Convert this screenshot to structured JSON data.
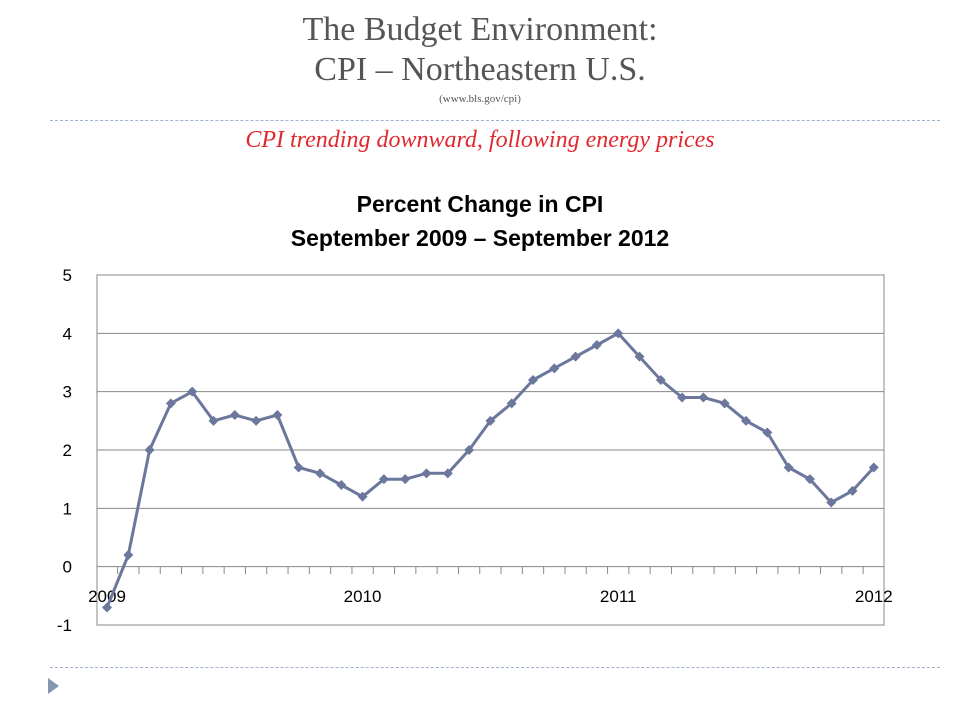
{
  "slide": {
    "title_line1": "The Budget Environment:",
    "title_line2": "CPI – Northeastern U.S.",
    "source": "(www.bls.gov/cpi)",
    "subtitle": "CPI  trending downward, following energy prices"
  },
  "colors": {
    "line": "#6b779c",
    "marker": "#6b779c",
    "grid": "#888888",
    "title": "#555555",
    "subtitle": "#e0282e",
    "bullet": "#8496b0"
  },
  "chart_data": {
    "type": "line",
    "title": [
      "Percent Change in CPI",
      "September 2009 – September 2012"
    ],
    "xlabel": "",
    "ylabel": "",
    "ylim": [
      -1,
      5
    ],
    "yticks": [
      5,
      4,
      3,
      2,
      1,
      0,
      -1
    ],
    "xticks": [
      {
        "label": "2009",
        "index": 0
      },
      {
        "label": "2010",
        "index": 12
      },
      {
        "label": "2011",
        "index": 24
      },
      {
        "label": "2012",
        "index": 36
      }
    ],
    "grid": true,
    "legend": "none",
    "series": [
      {
        "values": [
          -0.7,
          0.2,
          2.0,
          2.8,
          3.0,
          2.5,
          2.6,
          2.5,
          2.6,
          1.7,
          1.6,
          1.4,
          1.2,
          1.5,
          1.5,
          1.6,
          1.6,
          2.0,
          2.5,
          2.8,
          3.2,
          3.4,
          3.6,
          3.8,
          4.0,
          3.6,
          3.2,
          2.9,
          2.9,
          2.8,
          2.5,
          2.3,
          1.7,
          1.5,
          1.1,
          1.3,
          1.7
        ]
      }
    ]
  }
}
